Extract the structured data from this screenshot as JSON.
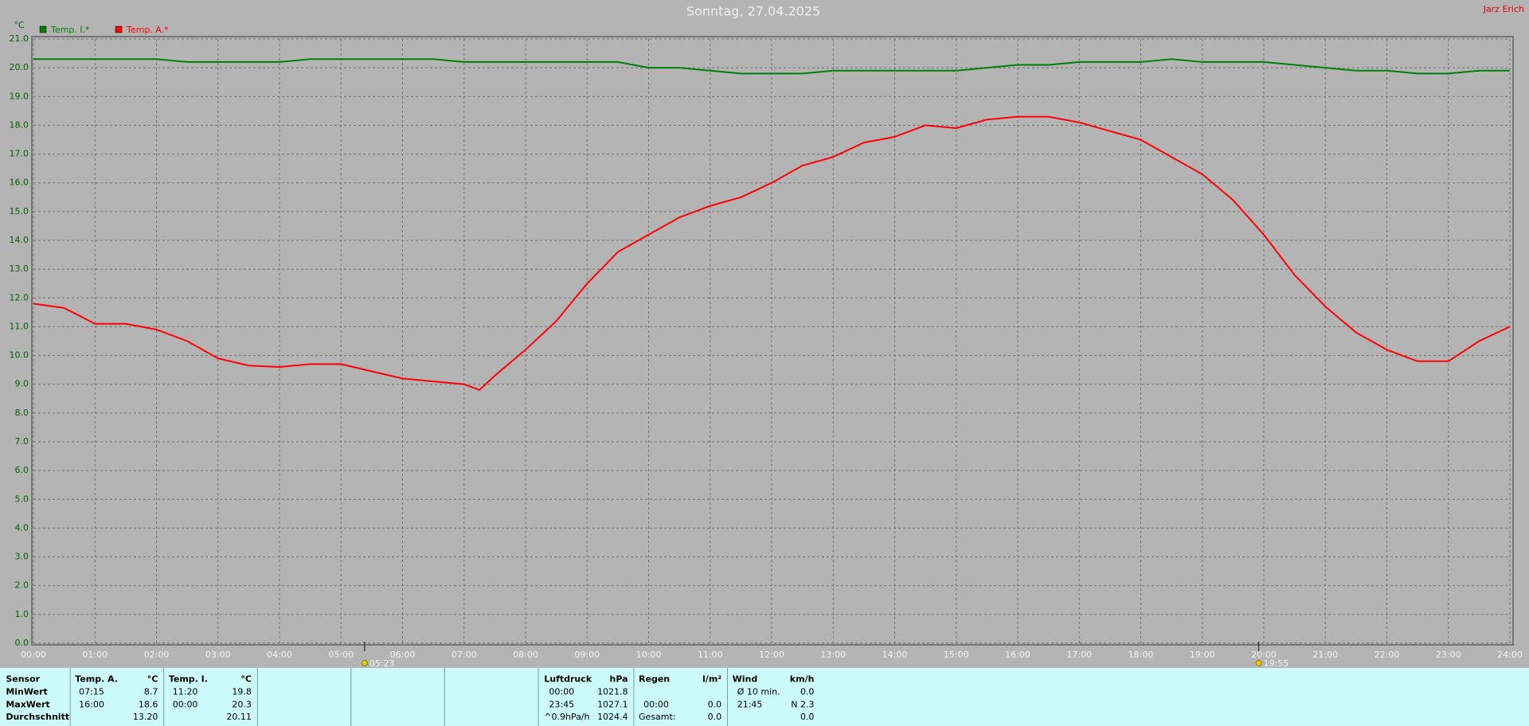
{
  "chart_data": {
    "type": "line",
    "title": "Sonntag, 27.04.2025",
    "author": "Jarz Erich",
    "y_label": "°C",
    "x": [
      0,
      0.5,
      1,
      1.5,
      2,
      2.5,
      3,
      3.5,
      4,
      4.5,
      5,
      5.5,
      6,
      6.5,
      7,
      7.25,
      7.5,
      8,
      8.5,
      9,
      9.5,
      10,
      10.5,
      11,
      11.5,
      12,
      12.5,
      13,
      13.5,
      14,
      14.5,
      15,
      15.5,
      16,
      16.5,
      17,
      17.5,
      18,
      18.5,
      19,
      19.5,
      20,
      20.5,
      21,
      21.5,
      22,
      22.5,
      23,
      23.5,
      24
    ],
    "series": [
      {
        "name": "Temp. I.*",
        "color": "#008000",
        "values": [
          20.3,
          20.3,
          20.3,
          20.3,
          20.3,
          20.2,
          20.2,
          20.2,
          20.2,
          20.3,
          20.3,
          20.3,
          20.3,
          20.3,
          20.2,
          20.2,
          20.2,
          20.2,
          20.2,
          20.2,
          20.2,
          20.0,
          20.0,
          19.9,
          19.8,
          19.8,
          19.8,
          19.9,
          19.9,
          19.9,
          19.9,
          19.9,
          20.0,
          20.1,
          20.1,
          20.2,
          20.2,
          20.2,
          20.3,
          20.2,
          20.2,
          20.2,
          20.1,
          20.0,
          19.9,
          19.9,
          19.8,
          19.8,
          19.9,
          19.9
        ]
      },
      {
        "name": "Temp. A.*",
        "color": "#ff0000",
        "values": [
          11.8,
          11.65,
          11.1,
          11.1,
          10.9,
          10.5,
          9.9,
          9.65,
          9.6,
          9.7,
          9.7,
          9.45,
          9.2,
          9.1,
          9.0,
          8.8,
          9.3,
          10.2,
          11.2,
          12.5,
          13.6,
          14.2,
          14.8,
          15.2,
          15.5,
          16.0,
          16.6,
          16.9,
          17.4,
          17.6,
          18.0,
          17.9,
          18.2,
          18.3,
          18.3,
          18.1,
          17.8,
          17.5,
          16.9,
          16.3,
          15.4,
          14.2,
          12.8,
          11.7,
          10.8,
          10.2,
          9.8,
          9.8,
          10.5,
          11.0
        ]
      }
    ],
    "xlim": [
      0,
      24
    ],
    "xticks": [
      {
        "value": 0,
        "label": "00:00"
      },
      {
        "value": 1,
        "label": "01:00"
      },
      {
        "value": 2,
        "label": "02:00"
      },
      {
        "value": 3,
        "label": "03:00"
      },
      {
        "value": 4,
        "label": "04:00"
      },
      {
        "value": 5,
        "label": "05:00"
      },
      {
        "value": 6,
        "label": "06:00"
      },
      {
        "value": 7,
        "label": "07:00"
      },
      {
        "value": 8,
        "label": "08:00"
      },
      {
        "value": 9,
        "label": "09:00"
      },
      {
        "value": 10,
        "label": "10:00"
      },
      {
        "value": 11,
        "label": "11:00"
      },
      {
        "value": 12,
        "label": "12:00"
      },
      {
        "value": 13,
        "label": "13:00"
      },
      {
        "value": 14,
        "label": "14:00"
      },
      {
        "value": 15,
        "label": "15:00"
      },
      {
        "value": 16,
        "label": "16:00"
      },
      {
        "value": 17,
        "label": "17:00"
      },
      {
        "value": 18,
        "label": "18:00"
      },
      {
        "value": 19,
        "label": "19:00"
      },
      {
        "value": 20,
        "label": "20:00"
      },
      {
        "value": 21,
        "label": "21:00"
      },
      {
        "value": 22,
        "label": "22:00"
      },
      {
        "value": 23,
        "label": "23:00"
      },
      {
        "value": 24,
        "label": "24:00"
      }
    ],
    "ylim": [
      0,
      21
    ],
    "yticks": [
      {
        "value": 0,
        "label": "0.0"
      },
      {
        "value": 1,
        "label": "1.0"
      },
      {
        "value": 2,
        "label": "2.0"
      },
      {
        "value": 3,
        "label": "3.0"
      },
      {
        "value": 4,
        "label": "4.0"
      },
      {
        "value": 5,
        "label": "5.0"
      },
      {
        "value": 6,
        "label": "6.0"
      },
      {
        "value": 7,
        "label": "7.0"
      },
      {
        "value": 8,
        "label": "8.0"
      },
      {
        "value": 9,
        "label": "9.0"
      },
      {
        "value": 10,
        "label": "10.0"
      },
      {
        "value": 11,
        "label": "11.0"
      },
      {
        "value": 12,
        "label": "12.0"
      },
      {
        "value": 13,
        "label": "13.0"
      },
      {
        "value": 14,
        "label": "14.0"
      },
      {
        "value": 15,
        "label": "15.0"
      },
      {
        "value": 16,
        "label": "16.0"
      },
      {
        "value": 17,
        "label": "17.0"
      },
      {
        "value": 18,
        "label": "18.0"
      },
      {
        "value": 19,
        "label": "19.0"
      },
      {
        "value": 20,
        "label": "20.0"
      },
      {
        "value": 21,
        "label": "21.0"
      }
    ],
    "grid": true,
    "sunrise": {
      "x": 5.383,
      "label": "05:23"
    },
    "sunset": {
      "x": 19.917,
      "label": "19:55"
    }
  },
  "panel": {
    "row_labels": [
      "Sensor",
      "MinWert",
      "MaxWert",
      "Durchschnitt"
    ],
    "temp_a": {
      "title": "Temp. A.",
      "unit": "°C",
      "min_time": "07:15",
      "min": "8.7",
      "max_time": "16:00",
      "max": "18.6",
      "avg": "13.20"
    },
    "temp_i": {
      "title": "Temp. I.",
      "unit": "°C",
      "min_time": "11:20",
      "min": "19.8",
      "max_time": "00:00",
      "max": "20.3",
      "avg": "20.11"
    },
    "pressure": {
      "title": "Luftdruck",
      "unit": "hPa",
      "min_time": "00:00",
      "min": "1021.8",
      "max_time": "23:45",
      "max": "1027.1",
      "trend": "^0.9hPa/h",
      "avg": "1024.4"
    },
    "rain": {
      "title": "Regen",
      "unit": "l/m²",
      "max_time": "00:00",
      "max": "0.0",
      "total_label": "Gesamt:",
      "total": "0.0"
    },
    "wind": {
      "title": "Wind",
      "unit": "km/h",
      "avg_label": "Ø 10 min.",
      "avg": "0.0",
      "max_time": "21:45",
      "max": "N 2.3",
      "gust": "0.0"
    }
  }
}
